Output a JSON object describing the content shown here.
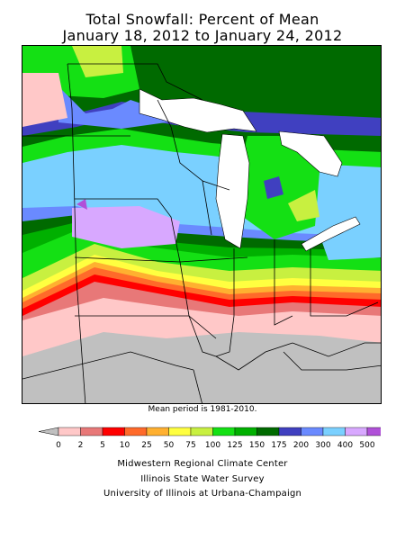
{
  "title_line1": "Total Snowfall: Percent of Mean",
  "title_line2": "January 18, 2012 to January 24, 2012",
  "mean_note": "Mean period is 1981-2010.",
  "legend": {
    "ticks": [
      "0",
      "2",
      "5",
      "10",
      "25",
      "50",
      "75",
      "100",
      "125",
      "150",
      "175",
      "200",
      "300",
      "400",
      "500"
    ],
    "colors": [
      "#c0c0c0",
      "#ffc8c8",
      "#e87878",
      "#ff0000",
      "#ff6a2a",
      "#ffb030",
      "#ffff40",
      "#c8f040",
      "#14e014",
      "#00b000",
      "#006a00",
      "#4040c0",
      "#6a8aff",
      "#7ad0ff",
      "#d8a8ff",
      "#b050d8"
    ]
  },
  "credits": {
    "line1": "Midwestern Regional Climate Center",
    "line2": "Illinois State Water Survey",
    "line3": "University of Illinois at Urbana-Champaign"
  }
}
